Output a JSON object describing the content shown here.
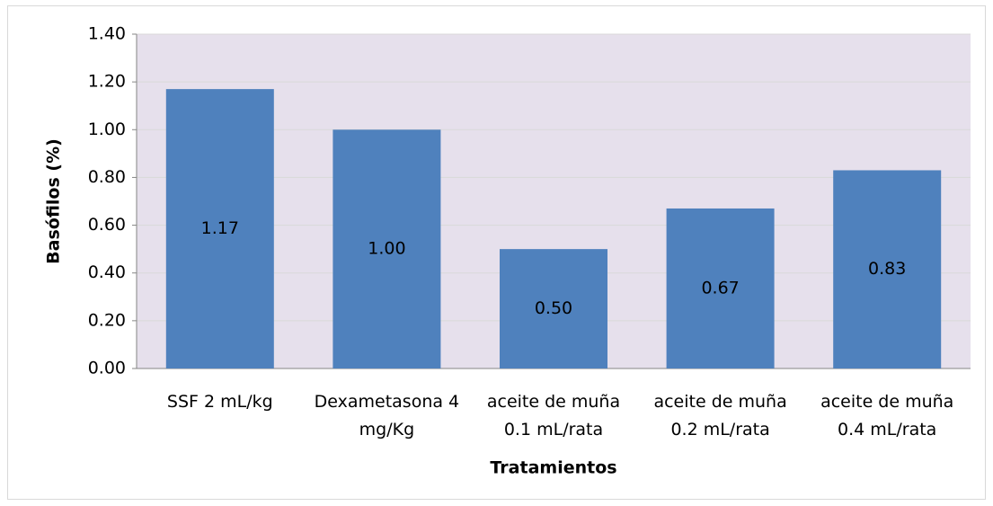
{
  "chart_data": {
    "type": "bar",
    "xlabel": "Tratamientos",
    "ylabel": "Basófilos (%)",
    "categories": [
      "SSF 2 mL/kg",
      "Dexametasona 4 mg/Kg",
      "aceite de muña 0.1 mL/rata",
      "aceite de muña 0.2 mL/rata",
      "aceite de muña 0.4 mL/rata"
    ],
    "values": [
      1.17,
      1.0,
      0.5,
      0.67,
      0.83
    ],
    "value_labels": [
      "1.17",
      "1.00",
      "0.50",
      "0.67",
      "0.83"
    ],
    "color": "#4f81bd",
    "ylim": [
      0,
      1.4
    ],
    "yticks": [
      {
        "value": 0,
        "label": "0.00"
      },
      {
        "value": 0.2,
        "label": "0.20"
      },
      {
        "value": 0.4,
        "label": "0.40"
      },
      {
        "value": 0.6,
        "label": "0.60"
      },
      {
        "value": 0.8,
        "label": "0.80"
      },
      {
        "value": 1.0,
        "label": "1.00"
      },
      {
        "value": 1.2,
        "label": "1.20"
      },
      {
        "value": 1.4,
        "label": "1.40"
      }
    ],
    "grid": true
  }
}
